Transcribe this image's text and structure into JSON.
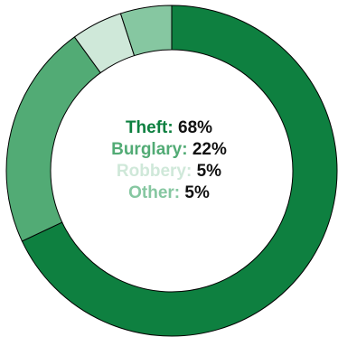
{
  "chart_data": {
    "type": "pie",
    "variant": "donut",
    "categories": [
      "Theft",
      "Burglary",
      "Robbery",
      "Other"
    ],
    "values": [
      68,
      22,
      5,
      5
    ],
    "value_labels": [
      "68%",
      "22%",
      "5%",
      "5%"
    ],
    "colors": [
      "#0e8040",
      "#52ab75",
      "#cfe8d9",
      "#86c7a1"
    ],
    "start_angle_deg": 0,
    "direction": "clockwise",
    "legend_placement": "center"
  },
  "legend": [
    {
      "label": "Theft:",
      "value": "68%",
      "color": "#0e8040"
    },
    {
      "label": "Burglary:",
      "value": "22%",
      "color": "#52ab75"
    },
    {
      "label": "Robbery:",
      "value": "5%",
      "color": "#cfe8d9"
    },
    {
      "label": "Other:",
      "value": "5%",
      "color": "#86c7a1"
    }
  ]
}
